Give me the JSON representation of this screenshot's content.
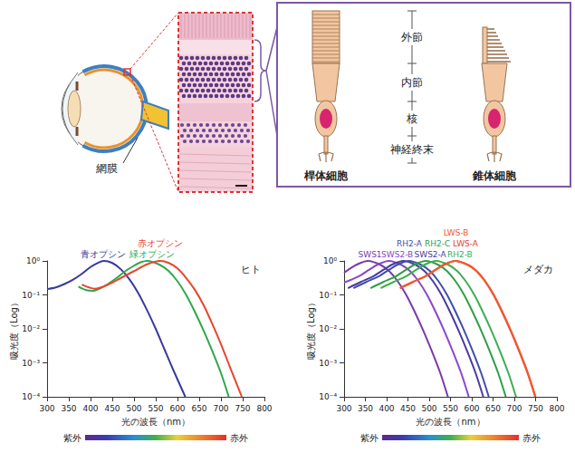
{
  "diagram": {
    "eye": {
      "label": "網膜"
    },
    "cell_parts": [
      "外節",
      "内節",
      "核",
      "神経終末"
    ],
    "cells": [
      "桿体細胞",
      "錐体細胞"
    ]
  },
  "chart_data": [
    {
      "type": "line",
      "title": "ヒト",
      "x_label": "光の波長（nm）",
      "y_label": "吸光度（Log）",
      "log": "y",
      "grid": false,
      "xlim": [
        300,
        800
      ],
      "xticks": [
        300,
        350,
        400,
        450,
        500,
        550,
        600,
        650,
        700,
        750,
        800
      ],
      "ylim": [
        0.0001,
        1
      ],
      "yticks": [
        {
          "value": 0.0001,
          "label": "10⁻⁴"
        },
        {
          "value": 0.001,
          "label": "10⁻³"
        },
        {
          "value": 0.01,
          "label": "10⁻²"
        },
        {
          "value": 0.1,
          "label": "10⁻¹"
        },
        {
          "value": 1,
          "label": "10⁰"
        }
      ],
      "annotations": [
        "紫外",
        "赤外"
      ],
      "series": [
        {
          "name": "青オプシン",
          "color": "#3a3a9c",
          "x": [
            300,
            320,
            340,
            360,
            380,
            400,
            415,
            430,
            450,
            470,
            490,
            510,
            530,
            550,
            570,
            590,
            618
          ],
          "values": [
            0.148,
            0.166,
            0.209,
            0.282,
            0.417,
            0.661,
            0.851,
            1,
            0.871,
            0.562,
            0.282,
            0.112,
            0.0355,
            0.01,
            0.00251,
            0.000631,
            0.0001
          ]
        },
        {
          "name": "緑オプシン",
          "color": "#2ea84a",
          "x": [
            372,
            390,
            405,
            420,
            440,
            460,
            480,
            500,
            515,
            530,
            560,
            580,
            600,
            620,
            640,
            660,
            680,
            700,
            718
          ],
          "values": [
            0.174,
            0.138,
            0.132,
            0.151,
            0.209,
            0.316,
            0.501,
            0.724,
            0.912,
            1,
            0.759,
            0.501,
            0.251,
            0.1,
            0.0316,
            0.00891,
            0.00224,
            0.000501,
            0.0001
          ]
        },
        {
          "name": "赤オプシン",
          "color": "#e8452e",
          "x": [
            380,
            410,
            440,
            470,
            500,
            530,
            560,
            580,
            600,
            620,
            640,
            660,
            680,
            700,
            720,
            748
          ],
          "values": [
            0.2,
            0.151,
            0.2,
            0.316,
            0.501,
            0.794,
            1,
            0.871,
            0.603,
            0.316,
            0.141,
            0.0501,
            0.0141,
            0.00355,
            0.000794,
            0.0001
          ]
        }
      ]
    },
    {
      "type": "line",
      "title": "メダカ",
      "x_label": "光の波長（nm）",
      "y_label": "吸光度（Log）",
      "log": "y",
      "grid": false,
      "xlim": [
        300,
        800
      ],
      "xticks": [
        300,
        350,
        400,
        450,
        500,
        550,
        600,
        650,
        700,
        750,
        800
      ],
      "ylim": [
        0.0001,
        1
      ],
      "yticks": [
        {
          "value": 0.0001,
          "label": "10⁻⁴"
        },
        {
          "value": 0.001,
          "label": "10⁻³"
        },
        {
          "value": 0.01,
          "label": "10⁻²"
        },
        {
          "value": 0.1,
          "label": "10⁻¹"
        },
        {
          "value": 1,
          "label": "10⁰"
        }
      ],
      "annotations": [
        "紫外",
        "赤外"
      ],
      "series": [
        {
          "name": "SWS1",
          "color": "#7a3aa8",
          "x": [
            300,
            311,
            331,
            356,
            386,
            406,
            426,
            446,
            466,
            486,
            506,
            526,
            544
          ],
          "values": [
            0.45,
            0.562,
            0.794,
            1,
            0.759,
            0.501,
            0.251,
            0.1,
            0.0316,
            0.00891,
            0.00224,
            0.000501,
            0.0001
          ]
        },
        {
          "name": "SWS2-B",
          "color": "#8a48c8",
          "x": [
            300,
            335,
            360,
            380,
            405,
            435,
            455,
            475,
            495,
            515,
            535,
            555,
            575,
            593
          ],
          "values": [
            0.23,
            0.355,
            0.562,
            0.794,
            1,
            0.759,
            0.501,
            0.251,
            0.1,
            0.0316,
            0.00891,
            0.00224,
            0.000501,
            0.0001
          ]
        },
        {
          "name": "SWS2-A",
          "color": "#4a3aa0",
          "x": [
            309,
            339,
            369,
            394,
            414,
            439,
            469,
            489,
            509,
            529,
            549,
            569,
            589,
            609,
            627
          ],
          "values": [
            0.158,
            0.24,
            0.355,
            0.562,
            0.794,
            1,
            0.759,
            0.501,
            0.251,
            0.1,
            0.0316,
            0.00891,
            0.00224,
            0.000501,
            0.0001
          ]
        },
        {
          "name": "RH2-A",
          "color": "#3e50a8",
          "x": [
            322,
            352,
            382,
            407,
            427,
            452,
            482,
            502,
            522,
            542,
            562,
            582,
            602,
            622,
            640
          ],
          "values": [
            0.158,
            0.24,
            0.355,
            0.562,
            0.794,
            1,
            0.759,
            0.501,
            0.251,
            0.1,
            0.0316,
            0.00891,
            0.00224,
            0.000501,
            0.0001
          ]
        },
        {
          "name": "RH2-C",
          "color": "#2f9e44",
          "x": [
            362,
            392,
            422,
            447,
            467,
            492,
            522,
            542,
            562,
            582,
            602,
            622,
            642,
            662,
            680
          ],
          "values": [
            0.158,
            0.24,
            0.355,
            0.562,
            0.794,
            1,
            0.759,
            0.501,
            0.251,
            0.1,
            0.0316,
            0.00891,
            0.00224,
            0.000501,
            0.0001
          ]
        },
        {
          "name": "RH2-B",
          "color": "#3cae52",
          "x": [
            386,
            416,
            446,
            471,
            491,
            516,
            546,
            566,
            586,
            606,
            626,
            646,
            666,
            686,
            704
          ],
          "values": [
            0.158,
            0.24,
            0.355,
            0.562,
            0.794,
            1,
            0.759,
            0.501,
            0.251,
            0.1,
            0.0316,
            0.00891,
            0.00224,
            0.000501,
            0.0001
          ]
        },
        {
          "name": "LWS-A",
          "color": "#e8412c",
          "x": [
            431,
            461,
            491,
            516,
            536,
            561,
            591,
            611,
            631,
            651,
            671,
            691,
            711,
            731,
            749
          ],
          "values": [
            0.158,
            0.24,
            0.355,
            0.562,
            0.794,
            1,
            0.759,
            0.501,
            0.251,
            0.1,
            0.0316,
            0.00891,
            0.00224,
            0.000501,
            0.0001
          ]
        },
        {
          "name": "LWS-B",
          "color": "#f05a30",
          "x": [
            432,
            462,
            492,
            517,
            537,
            562,
            592,
            612,
            632,
            652,
            672,
            692,
            712,
            732,
            750
          ],
          "values": [
            0.158,
            0.24,
            0.355,
            0.562,
            0.794,
            1,
            0.759,
            0.501,
            0.251,
            0.1,
            0.0316,
            0.00891,
            0.00224,
            0.000501,
            0.0001
          ]
        }
      ]
    }
  ]
}
